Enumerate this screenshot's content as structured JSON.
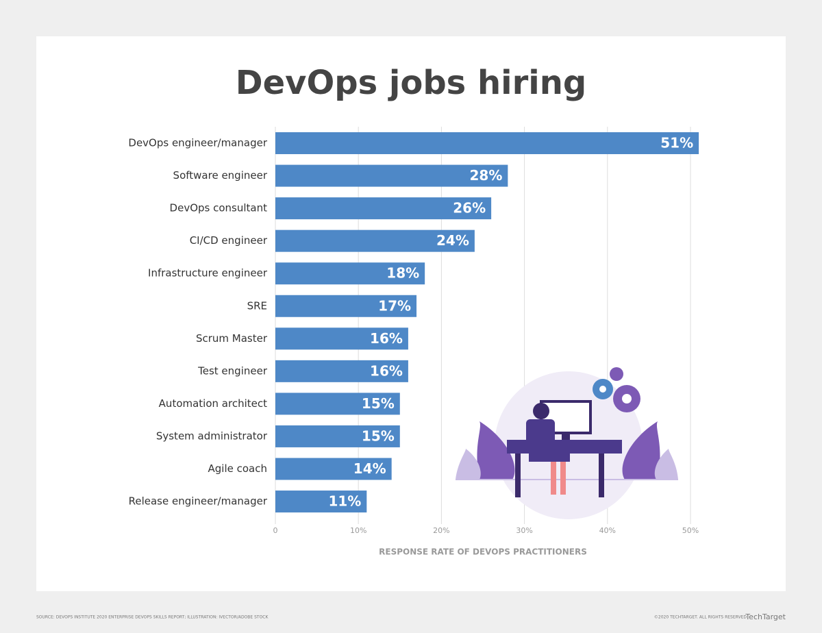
{
  "chart_data": {
    "type": "bar",
    "orientation": "horizontal",
    "title": "DevOps jobs hiring",
    "categories": [
      "DevOps engineer/manager",
      "Software engineer",
      "DevOps consultant",
      "CI/CD engineer",
      "Infrastructure engineer",
      "SRE",
      "Scrum Master",
      "Test engineer",
      "Automation architect",
      "System administrator",
      "Agile coach",
      "Release engineer/manager"
    ],
    "values": [
      51,
      28,
      26,
      24,
      18,
      17,
      16,
      16,
      15,
      15,
      14,
      11
    ],
    "value_labels": [
      "51%",
      "28%",
      "26%",
      "24%",
      "18%",
      "17%",
      "16%",
      "16%",
      "15%",
      "15%",
      "14%",
      "11%"
    ],
    "color": "#4e88c7",
    "xlim": [
      0,
      50
    ],
    "xticks": [
      0,
      {
        "value": 10,
        "label": "10%"
      },
      {
        "value": 20,
        "label": "20%"
      },
      {
        "value": 30,
        "label": "30%"
      },
      {
        "value": 40,
        "label": "40%"
      },
      {
        "value": 50,
        "label": "50%"
      }
    ],
    "xlabel": "RESPONSE RATE OF DEVOPS PRACTITIONERS",
    "grid": true,
    "source": "SOURCE: DEVOPS INSTITUTE 2020 ENTERPRISE DEVOPS SKILLS REPORT; ILLUSTRATION: IVECTOR/ADOBE STOCK",
    "copyright": "©2020 TECHTARGET. ALL RIGHTS RESERVED",
    "brand": "TechTarget"
  }
}
